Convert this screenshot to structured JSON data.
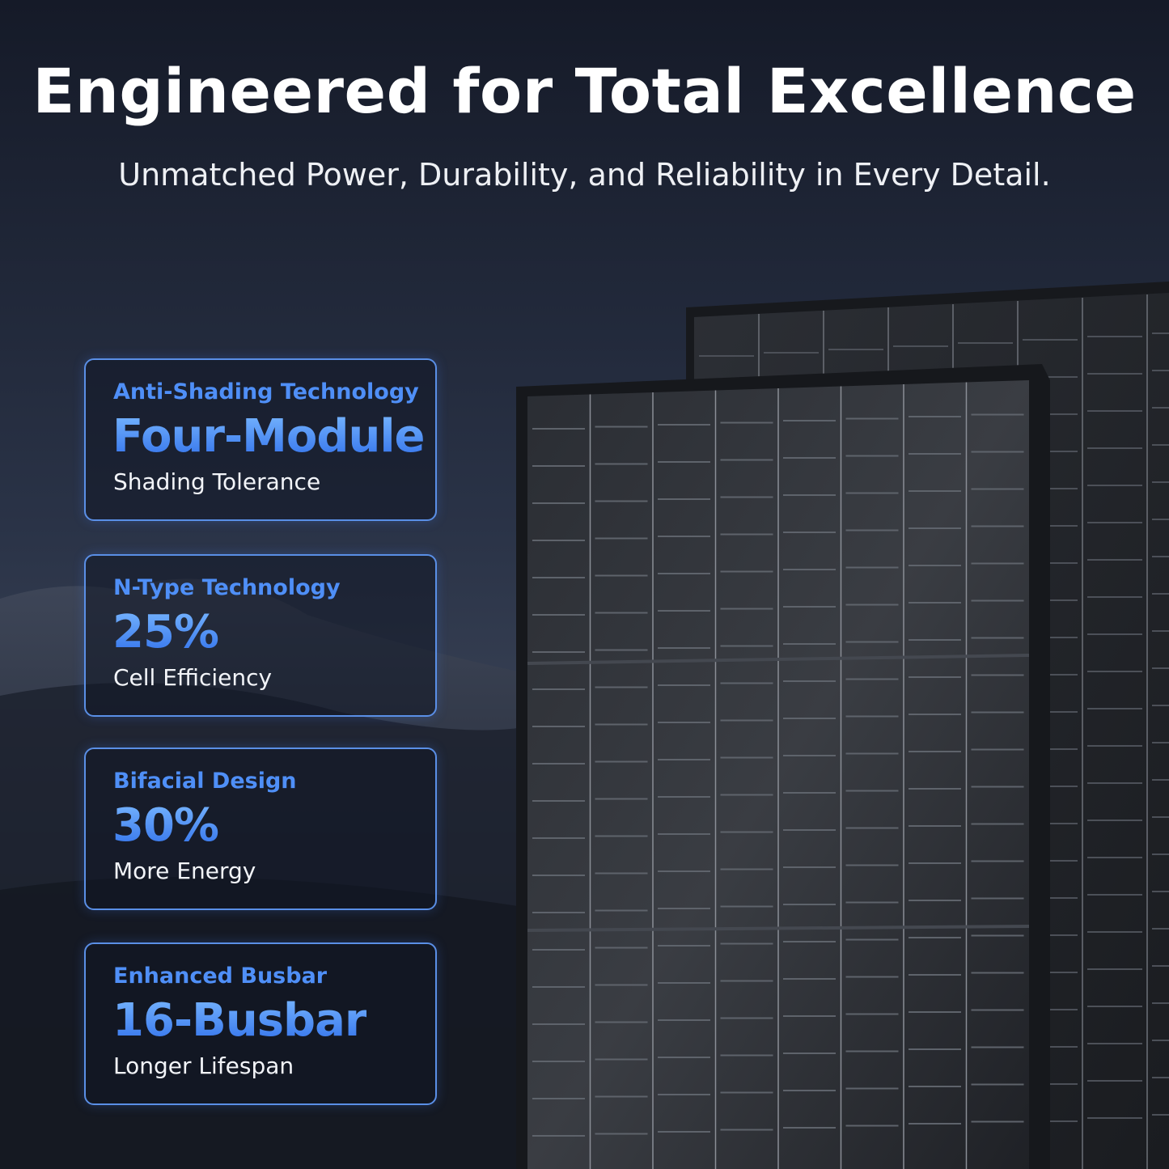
{
  "header": {
    "title": "Engineered for Total Excellence",
    "subtitle": "Unmatched Power, Durability, and Reliability in Every Detail."
  },
  "features": [
    {
      "category": "Anti-Shading Technology",
      "headline": "Four-Module",
      "caption": "Shading Tolerance"
    },
    {
      "category": "N-Type Technology",
      "headline": "25%",
      "caption": "Cell Efficiency"
    },
    {
      "category": "Bifacial Design",
      "headline": "30%",
      "caption": "More Energy"
    },
    {
      "category": "Enhanced Busbar",
      "headline": "16-Busbar",
      "caption": "Longer Lifespan"
    }
  ]
}
